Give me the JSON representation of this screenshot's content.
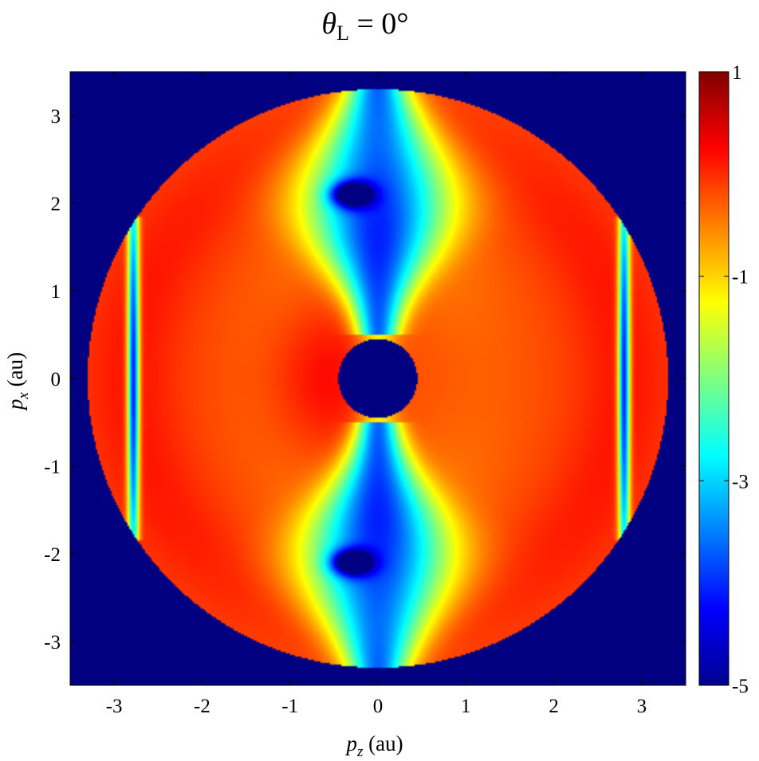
{
  "chart_data": {
    "type": "heatmap",
    "title": {
      "symbol": "θ",
      "subscript": "L",
      "rest": " = 0°"
    },
    "xlabel": {
      "symbol": "p",
      "subscript": "z",
      "unit": " (au)"
    },
    "ylabel": {
      "symbol": "p",
      "subscript": "x",
      "unit": " (au)"
    },
    "xlim": [
      -3.5,
      3.5
    ],
    "ylim": [
      -3.5,
      3.5
    ],
    "xticks": [
      -3,
      -2,
      -1,
      0,
      1,
      2,
      3
    ],
    "xtick_labels": [
      "-3",
      "-2",
      "-1",
      "0",
      "1",
      "2",
      "3"
    ],
    "yticks": [
      -3,
      -2,
      -1,
      0,
      1,
      2,
      3
    ],
    "ytick_labels": [
      "-3",
      "-2",
      "-1",
      "0",
      "1",
      "2",
      "3"
    ],
    "colormap": "jet",
    "colorbar": {
      "range": [
        -5,
        1
      ],
      "ticks": [
        1,
        -1,
        -3,
        -5
      ],
      "tick_labels": [
        "1",
        "-1",
        "-3",
        "-5"
      ]
    },
    "domain": {
      "shape": "annulus",
      "inner_radius": 0.45,
      "outer_radius": 3.3
    },
    "background_value": -5,
    "features": {
      "minima": [
        {
          "pz": -0.3,
          "px": 2.1
        },
        {
          "pz": -0.3,
          "px": -2.1
        }
      ],
      "vertical_minimum_lines": [
        {
          "pz": -2.78,
          "px_extent": [
            -1.85,
            1.85
          ]
        },
        {
          "pz": 2.8,
          "px_extent": [
            -1.85,
            1.85
          ]
        }
      ],
      "maximum": {
        "pz": -0.6,
        "px": 0
      }
    },
    "grid": false,
    "colors": {
      "background": "#00008f",
      "max": "#800000"
    }
  }
}
